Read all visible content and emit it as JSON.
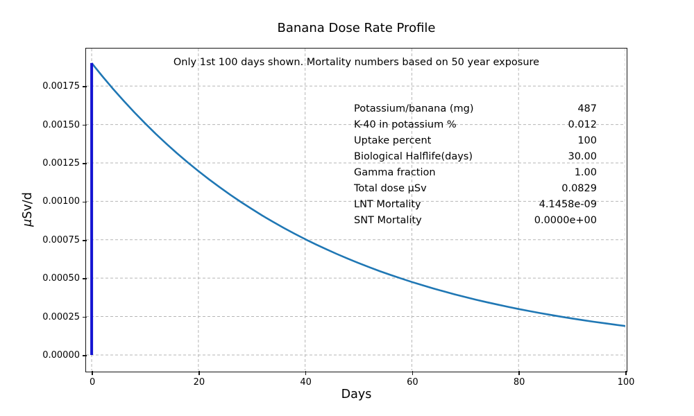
{
  "figure": {
    "title": "Banana Dose Rate Profile",
    "subtitle": "Only 1st 100 days shown. Mortality numbers based on 50 year exposure",
    "xlabel": "Days",
    "ylabel_mu": "μ",
    "ylabel_rest": "Sv/d"
  },
  "annotations": {
    "rows": [
      {
        "label": "Potassium/banana (mg)",
        "value": "487"
      },
      {
        "label": "K-40 in potassium %",
        "value": "0.012"
      },
      {
        "label": "Uptake percent",
        "value": "100"
      },
      {
        "label": "Biological Halflife(days)",
        "value": "30.00"
      },
      {
        "label": "Gamma fraction",
        "value": "1.00"
      },
      {
        "label": "Total dose μSv",
        "value": "0.0829"
      },
      {
        "label": "LNT Mortality",
        "value": "4.1458e-09"
      },
      {
        "label": "SNT Mortality",
        "value": "0.0000e+00"
      }
    ]
  },
  "chart_data": {
    "type": "line",
    "title": "Banana Dose Rate Profile",
    "annotation": "Only 1st 100 days shown. Mortality numbers based on 50 year exposure",
    "xlabel": "Days",
    "ylabel": "μSv/d",
    "xlim": [
      -1.05,
      100
    ],
    "ylim": [
      -9.95e-05,
      0.0019945
    ],
    "xticks": [
      0,
      20,
      40,
      60,
      80,
      100
    ],
    "yticks": [
      0.0,
      0.00025,
      0.0005,
      0.00075,
      0.001,
      0.00125,
      0.0015,
      0.00175
    ],
    "ytick_labels": [
      "0.00000",
      "0.00025",
      "0.00050",
      "0.00075",
      "0.00100",
      "0.00125",
      "0.00150",
      "0.00175"
    ],
    "grid": true,
    "grid_color": "#b5b5b5",
    "grid_style": "dashed",
    "legend": "none",
    "series": [
      {
        "name": "dose-rate-curve",
        "color": "#1f77b4",
        "width": 2.6,
        "x": [
          0,
          2,
          4,
          6,
          8,
          10,
          12,
          14,
          16,
          18,
          20,
          22,
          24,
          26,
          28,
          30,
          32,
          34,
          36,
          38,
          40,
          42,
          44,
          46,
          48,
          50,
          52,
          54,
          56,
          58,
          60,
          62,
          64,
          66,
          68,
          70,
          72,
          74,
          76,
          78,
          80,
          82,
          84,
          86,
          88,
          90,
          92,
          94,
          96,
          98,
          100
        ],
        "y": [
          0.0019,
          0.0018142,
          0.0017323,
          0.001654,
          0.0015794,
          0.001508,
          0.0014399,
          0.0013749,
          0.0013128,
          0.0012535,
          0.0011969,
          0.0011429,
          0.0010913,
          0.001042,
          0.0009949,
          0.00095,
          0.0009071,
          0.0008661,
          0.000827,
          0.0007897,
          0.000754,
          0.00072,
          0.0006875,
          0.0006564,
          0.0006268,
          0.0005985,
          0.0005714,
          0.0005456,
          0.000521,
          0.0004975,
          0.000475,
          0.0004536,
          0.0004331,
          0.0004135,
          0.0003948,
          0.000377,
          0.00036,
          0.0003437,
          0.0003282,
          0.0003134,
          0.0002992,
          0.0002857,
          0.0002728,
          0.0002605,
          0.0002487,
          0.0002375,
          0.0002268,
          0.0002165,
          0.0002068,
          0.0001974,
          0.0001885
        ]
      },
      {
        "name": "day-zero-spike",
        "color": "#1414d2",
        "width": 4,
        "x": [
          0,
          0
        ],
        "y": [
          0.0,
          0.0019
        ]
      }
    ]
  }
}
